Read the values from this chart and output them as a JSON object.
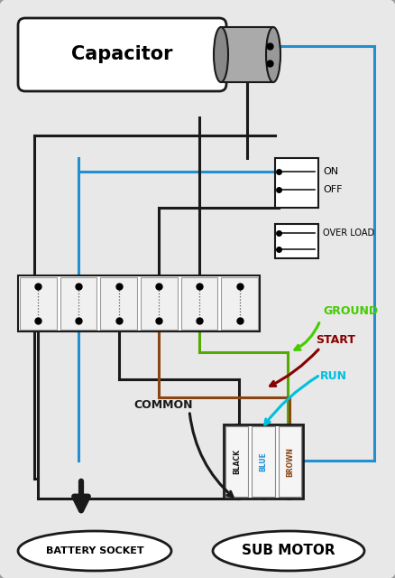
{
  "bg_color": "#c8c8c8",
  "panel_color": "#e2e2e2",
  "wire_blue": "#2090d0",
  "wire_black": "#1a1a1a",
  "wire_green": "#55aa00",
  "wire_cyan": "#00c0e0",
  "wire_dark_red": "#880000",
  "wire_brown": "#8B4513",
  "capacitor_label": "Capacitor",
  "battery_label": "BATTERY SOCKET",
  "motor_label": "SUB MOTOR",
  "on_label": "ON",
  "off_label": "OFF",
  "overload_label": "OVER LOAD",
  "ground_label": "GROUND",
  "start_label": "START",
  "run_label": "RUN",
  "common_label": "COMMON",
  "black_label": "BLACK",
  "blue_label": "BLUE",
  "brown_label": "BROWN"
}
